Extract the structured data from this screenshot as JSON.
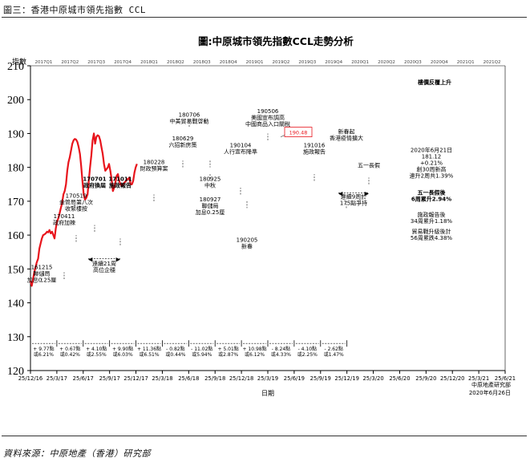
{
  "header": {
    "figure_label": "圖三：香港中原城市領先指數 CCL"
  },
  "footer": {
    "source": "資料來源：中原地產（香港）研究部"
  },
  "colors": {
    "line": "#e8141c",
    "axis": "#000000",
    "highlight_box": "#e8141c"
  },
  "chart_data": {
    "type": "line",
    "title": "圖:中原城市領先指數CCL走勢分析",
    "ylabel": "指數",
    "xlabel": "日期",
    "ylim": [
      120,
      210
    ],
    "y_ticks": [
      120,
      130,
      140,
      150,
      160,
      170,
      180,
      190,
      200,
      210
    ],
    "x_tick_labels": [
      "25/12/16",
      "25/3/17",
      "25/6/17",
      "25/9/17",
      "25/12/17",
      "25/3/18",
      "25/6/18",
      "25/9/18",
      "25/12/18",
      "25/3/19",
      "25/6/19",
      "25/9/19",
      "25/12/19",
      "25/3/20",
      "25/6/20",
      "25/9/20",
      "25/12/20",
      "25/3/21",
      "25/6/21"
    ],
    "quarter_labels": [
      "2017Q1",
      "2017Q2",
      "2017Q3",
      "2017Q4",
      "2018Q1",
      "2018Q2",
      "2018Q3",
      "2018Q4",
      "2019Q1",
      "2019Q2",
      "2019Q3",
      "2019Q4",
      "2020Q1",
      "2020Q2",
      "2020Q3",
      "2020Q4",
      "2021Q1",
      "2021Q2"
    ],
    "series": [
      {
        "x": [
          0,
          0.5,
          1,
          1.5,
          2,
          2.5,
          3,
          3.5,
          4,
          4.5,
          5,
          5.5,
          6,
          6.5,
          7,
          7.5,
          8,
          8.5,
          9,
          9.5,
          10,
          10.5,
          11,
          11.5,
          12,
          12.5,
          13,
          13.5,
          14,
          14.5,
          15,
          15.5,
          16,
          16.5,
          17,
          17.5,
          18,
          18.5,
          19,
          19.5,
          20,
          20.5,
          21,
          21.5,
          22,
          22.5,
          23,
          23.5,
          24,
          24.5,
          25,
          25.5,
          26,
          26.5,
          27,
          27.5,
          28,
          28.5,
          29,
          29.5,
          30,
          30.5,
          31,
          31.5,
          32,
          32.5,
          33,
          33.5,
          34,
          34.5,
          35,
          35.5,
          36,
          36.5,
          37,
          37.5,
          38,
          38.5,
          39,
          39.5,
          40,
          40.5,
          41,
          41.5,
          42
        ],
        "y": [
          146.5,
          145,
          147,
          149,
          150.5,
          152,
          153,
          156,
          157.5,
          159,
          160,
          160.2,
          160.5,
          161,
          160.8,
          161.5,
          160.5,
          161,
          160,
          159,
          162,
          164,
          165,
          166.5,
          168,
          169.5,
          172,
          173,
          175,
          179,
          181.5,
          183,
          185,
          187,
          188,
          188.4,
          188.2,
          187.5,
          186,
          184,
          180.5,
          176,
          172,
          170.5,
          171,
          172,
          176,
          180,
          183.5,
          188,
          190,
          187,
          189,
          189.5,
          189.2,
          188,
          186,
          184,
          181,
          179,
          179.5,
          180,
          181,
          179,
          176.5,
          173,
          174,
          175.5,
          177.5,
          178,
          176,
          175,
          174.5,
          175,
          175.5,
          175.8,
          176.5,
          176.5,
          177,
          175,
          175,
          176,
          178.5,
          180,
          181
        ]
      }
    ],
    "event_labels": [
      {
        "date": "161215",
        "lines": [
          "161215",
          "聯儲局",
          "加息0.25厘"
        ]
      },
      {
        "date": "170411",
        "lines": [
          "170411",
          "政府加辣"
        ]
      },
      {
        "date": "170519",
        "lines": [
          "170519",
          "金管局第八次",
          "收緊樓按"
        ]
      },
      {
        "date": "170701",
        "lines": [
          "170701",
          "政府換屆"
        ]
      },
      {
        "date": "171011",
        "lines": [
          "171011",
          "施政報告"
        ]
      },
      {
        "date": "180228",
        "lines": [
          "180228",
          "財政預算案"
        ]
      },
      {
        "date": "180629",
        "lines": [
          "180629",
          "六招新房策"
        ]
      },
      {
        "date": "180706",
        "lines": [
          "180706",
          "中美貿易戰啓動"
        ]
      },
      {
        "date": "180925",
        "lines": [
          "180925",
          "中秋"
        ]
      },
      {
        "date": "180927",
        "lines": [
          "180927",
          "聯儲局",
          "加息0.25厘"
        ]
      },
      {
        "date": "190104",
        "lines": [
          "190104",
          "人行宣布降準"
        ]
      },
      {
        "date": "190205",
        "lines": [
          "190205",
          "新春"
        ]
      },
      {
        "date": "190506",
        "lines": [
          "190506",
          "美國宣布調高",
          "中國商品入口關稅"
        ]
      },
      {
        "date": "191016",
        "lines": [
          "191016",
          "施政報告"
        ]
      },
      {
        "date": "新春起",
        "lines": [
          "新春起",
          "香港疫情擴大"
        ]
      },
      {
        "date": "五一長假",
        "lines": [
          "五一長假"
        ]
      }
    ],
    "highlight_value": "190.48",
    "annotations_right": [
      {
        "lines": [
          "樓價反覆上升"
        ]
      },
      {
        "lines": [
          "2020年6月21日",
          "181.12",
          "+0.21%",
          "創30周新高",
          "連升2周共1.39%"
        ]
      },
      {
        "lines": [
          "五一長假後",
          "6周累升2.94%"
        ]
      },
      {
        "lines": [
          "施政報告後",
          "34周累升1.18%"
        ]
      },
      {
        "lines": [
          "貿易戰升級後計",
          "56周累跌4.38%"
        ]
      }
    ],
    "band_annotations": [
      {
        "lines": [
          "連續21周",
          "高位企穩"
        ]
      },
      {
        "lines": [
          "連續9周於",
          "175點爭持"
        ]
      }
    ],
    "quarter_changes": [
      [
        "+ 9.77點",
        "或6.21%"
      ],
      [
        "+ 0.67點",
        "或0.42%"
      ],
      [
        "+ 4.10點",
        "或2.55%"
      ],
      [
        "+ 9.90點",
        "或6.03%"
      ],
      [
        "+ 11.36點",
        "或6.51%"
      ],
      [
        "- 0.82點",
        "或0.44%"
      ],
      [
        "- 11.02點",
        "或5.94%"
      ],
      [
        "+ 5.01點",
        "或2.87%"
      ],
      [
        "+ 10.98點",
        "或6.12%"
      ],
      [
        "- 8.24點",
        "或4.33%"
      ],
      [
        "- 4.10點",
        "或2.25%"
      ],
      [
        "- 2.62點",
        "或1.47%"
      ]
    ],
    "credit": [
      "中原地產研究部",
      "2020年6月26日"
    ],
    "grid": false,
    "legend": "none"
  }
}
